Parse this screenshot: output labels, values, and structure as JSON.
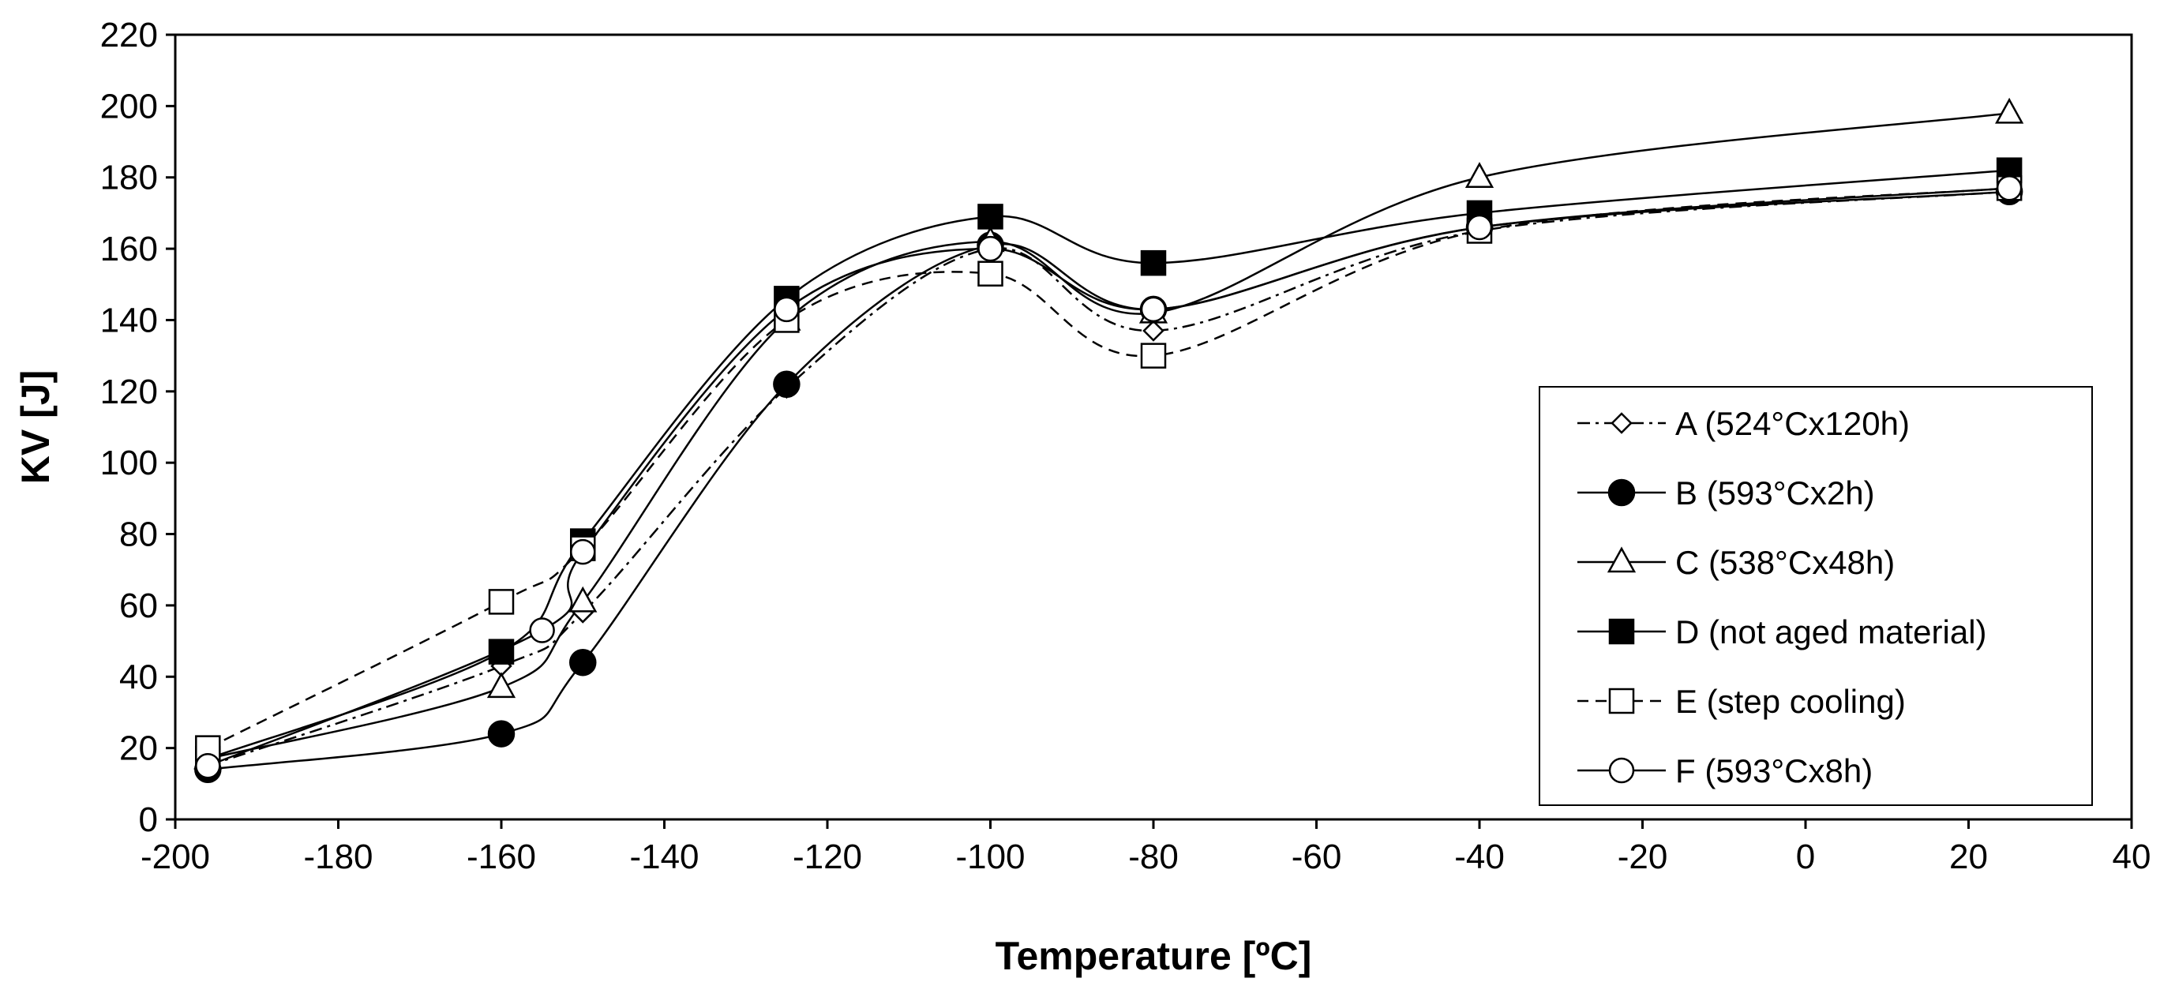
{
  "chart_data": {
    "type": "line",
    "title": "",
    "xlabel": "Temperature [ºC]",
    "ylabel": "KV [J]",
    "xlim": [
      -200,
      40
    ],
    "ylim": [
      0,
      220
    ],
    "xticks": [
      -200,
      -180,
      -160,
      -140,
      -120,
      -100,
      -80,
      -60,
      -40,
      -20,
      0,
      20,
      40
    ],
    "yticks": [
      0,
      20,
      40,
      60,
      80,
      100,
      120,
      140,
      160,
      180,
      200,
      220
    ],
    "grid": false,
    "legend_position": "center-right",
    "series": [
      {
        "name": "A (524°Cx120h)",
        "marker": "diamond-open",
        "line": "dashdot",
        "x": [
          -196,
          -160,
          -150,
          -125,
          -100,
          -80,
          -40,
          25
        ],
        "y": [
          15,
          43,
          58,
          121,
          160,
          137,
          165,
          176
        ]
      },
      {
        "name": "B (593°Cx2h)",
        "marker": "circle-filled",
        "line": "solid",
        "x": [
          -196,
          -160,
          -150,
          -125,
          -100,
          -80,
          -40,
          25
        ],
        "y": [
          14,
          24,
          44,
          122,
          161,
          143,
          166,
          176
        ]
      },
      {
        "name": "C (538°Cx48h)",
        "marker": "triangle-open",
        "line": "solid",
        "x": [
          -196,
          -160,
          -150,
          -125,
          -100,
          -80,
          -40,
          25
        ],
        "y": [
          17,
          37,
          61,
          140,
          162,
          142,
          180,
          198
        ]
      },
      {
        "name": "D (not aged material)",
        "marker": "square-filled",
        "line": "solid",
        "x": [
          -196,
          -160,
          -150,
          -125,
          -100,
          -80,
          -40,
          25
        ],
        "y": [
          17,
          47,
          78,
          146,
          169,
          156,
          170,
          182
        ]
      },
      {
        "name": "E (step cooling)",
        "marker": "square-open",
        "line": "dashed",
        "x": [
          -196,
          -160,
          -150,
          -125,
          -100,
          -80,
          -40,
          25
        ],
        "y": [
          20,
          61,
          76,
          140,
          153,
          130,
          165,
          177
        ]
      },
      {
        "name": "F (593°Cx8h)",
        "marker": "circle-open",
        "line": "solid",
        "x": [
          -196,
          -155,
          -150,
          -125,
          -100,
          -80,
          -40,
          25
        ],
        "y": [
          15,
          53,
          75,
          143,
          160,
          143,
          166,
          177
        ]
      }
    ]
  }
}
